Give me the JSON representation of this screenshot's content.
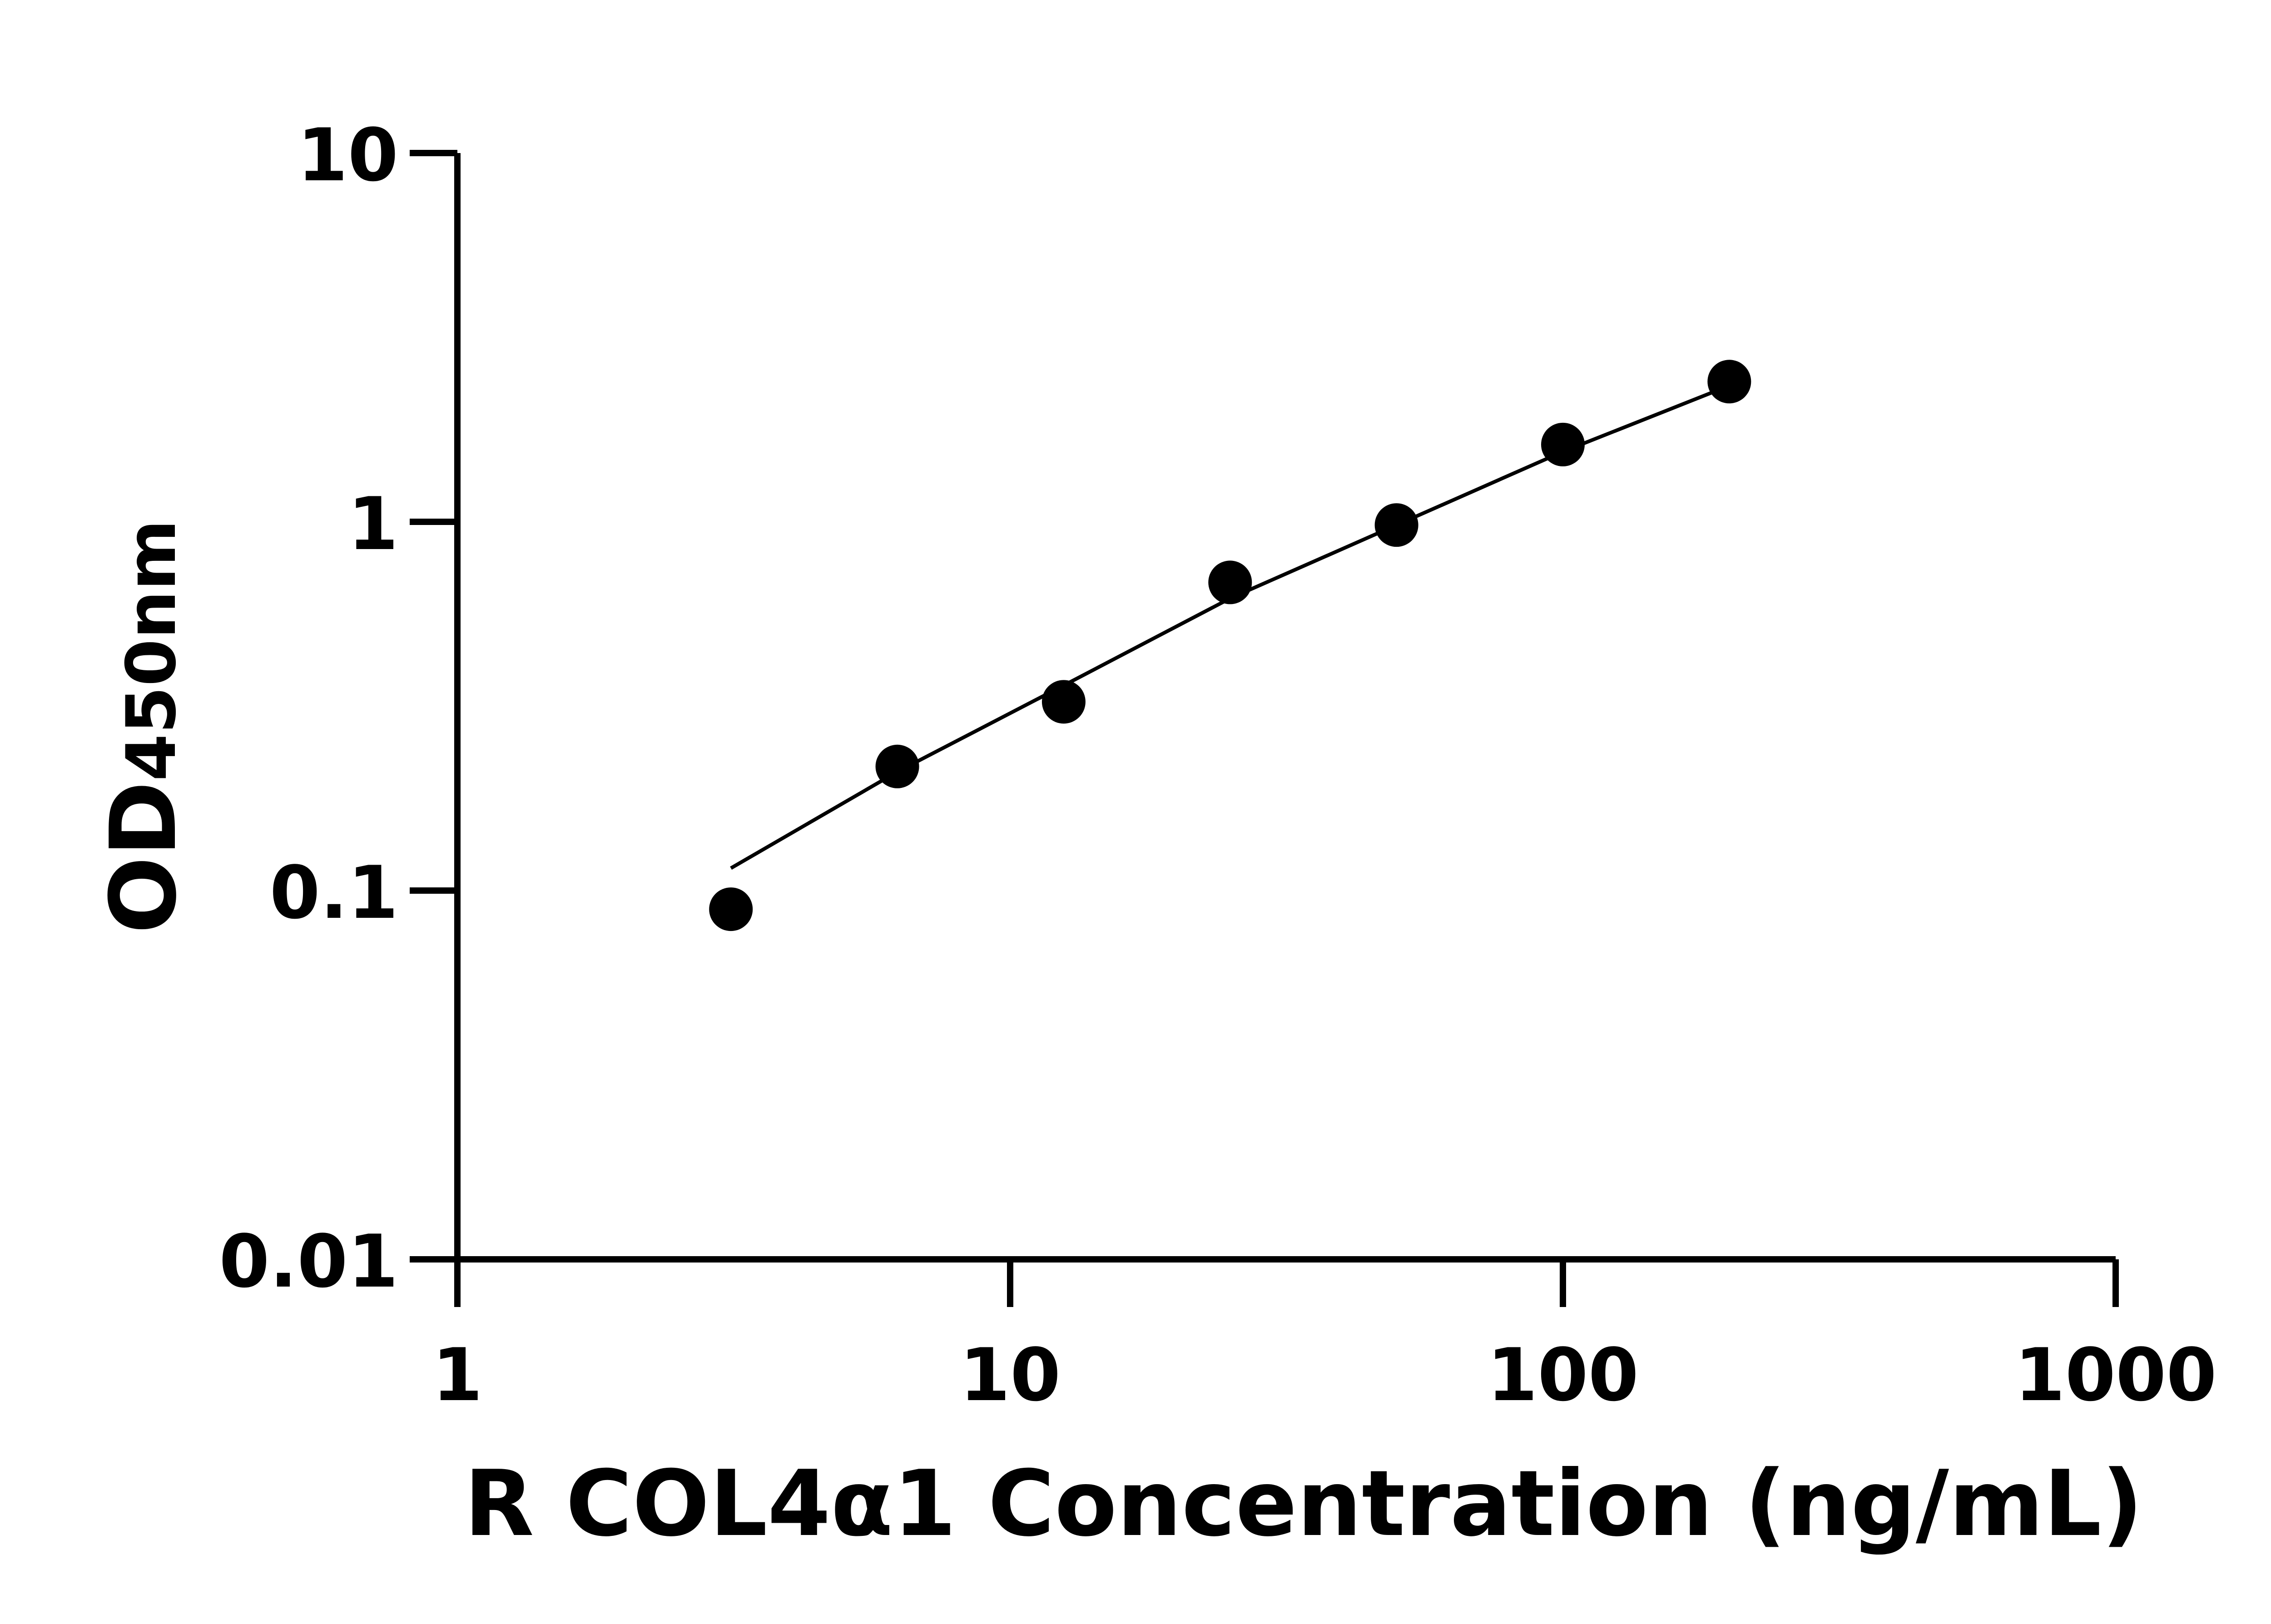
{
  "chart_data": {
    "type": "scatter",
    "title": "",
    "xlabel": "R COL4α1 Concentration (ng/mL)",
    "ylabel_main": "OD",
    "ylabel_sub": "450nm",
    "x_scale": "log",
    "y_scale": "log",
    "xlim": [
      1,
      1000
    ],
    "ylim": [
      0.01,
      10
    ],
    "x_ticks": [
      1,
      10,
      100,
      1000
    ],
    "x_tick_labels": [
      "1",
      "10",
      "100",
      "1000"
    ],
    "y_ticks": [
      0.01,
      0.1,
      1,
      10
    ],
    "y_tick_labels": [
      "0.01",
      "0.1",
      "1",
      "10"
    ],
    "grid": false,
    "series": [
      {
        "x": [
          3.125,
          6.25,
          12.5,
          25,
          50,
          100,
          200
        ],
        "y": [
          0.089,
          0.217,
          0.325,
          0.685,
          0.98,
          1.62,
          2.4
        ],
        "marker": "circle",
        "color": "#000000"
      }
    ],
    "fit_curve": {
      "x": [
        3.125,
        6.25,
        12.5,
        25,
        50,
        100,
        200
      ],
      "y": [
        0.115,
        0.21,
        0.36,
        0.62,
        0.98,
        1.55,
        2.34
      ],
      "color": "#000000"
    }
  }
}
